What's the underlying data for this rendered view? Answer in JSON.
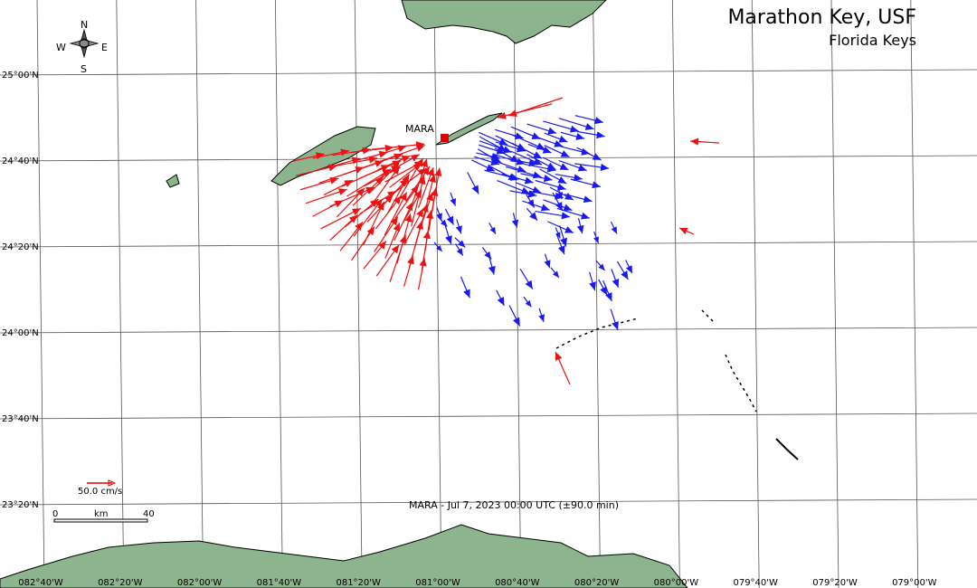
{
  "header": {
    "title": "Marathon Key, USF",
    "subtitle": "Florida Keys"
  },
  "compass": {
    "n": "N",
    "w": "W",
    "e": "E",
    "s": "S"
  },
  "station": "MARA",
  "lat_labels": [
    "25°00'N",
    "24°40'N",
    "24°20'N",
    "24°00'N",
    "23°40'N",
    "23°20'N"
  ],
  "lon_labels": [
    "082°40'W",
    "082°20'W",
    "082°00'W",
    "081°40'W",
    "081°20'W",
    "081°00'W",
    "080°40'W",
    "080°20'W",
    "080°00'W",
    "079°40'W",
    "079°20'W",
    "079°00'W"
  ],
  "scale": {
    "speed": "50.0 cm/s",
    "start": "0",
    "unit": "km",
    "end": "40"
  },
  "footer": "MARA - Jul 7, 2023 00:00 UTC (±90.0 min)"
}
